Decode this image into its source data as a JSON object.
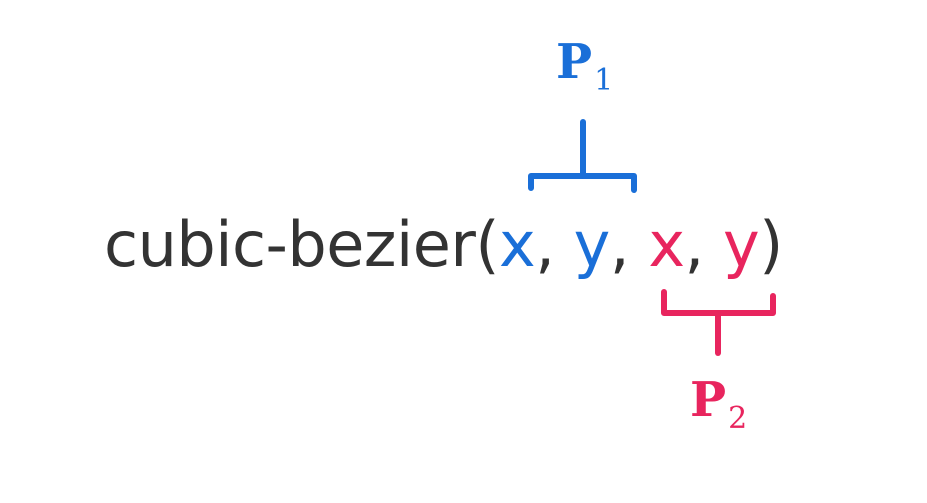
{
  "expression": {
    "function_name": "cubic-bezier",
    "open_paren": "(",
    "close_paren": ")",
    "separator": ",",
    "p1_x": "x",
    "p1_y": "y",
    "p2_x": "x",
    "p2_y": "y"
  },
  "labels": {
    "p1": {
      "letter": "P",
      "subscript": "1"
    },
    "p2": {
      "letter": "P",
      "subscript": "2"
    }
  },
  "colors": {
    "text": "#333333",
    "p1": "#1a6fd8",
    "p2": "#e8255e"
  }
}
